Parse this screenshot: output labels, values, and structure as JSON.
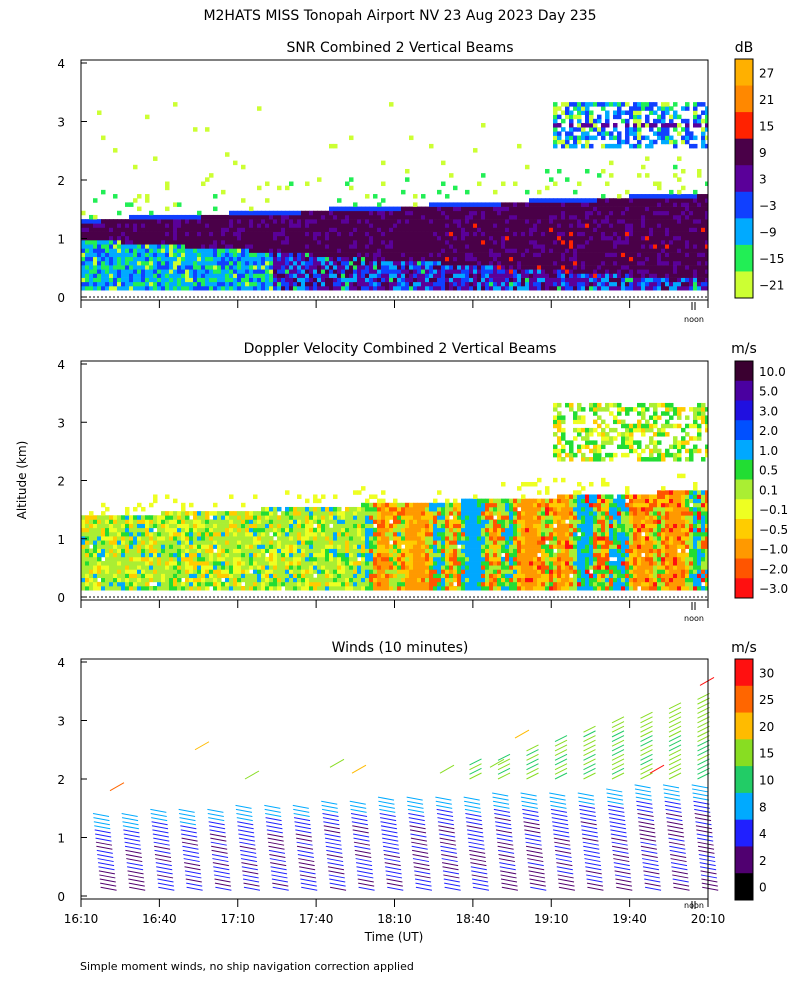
{
  "figure": {
    "title": "M2HATS MISS Tonopah Airport NV  23 Aug 2023 Day 235",
    "ylabel": "Altitude (km)",
    "xlabel": "Time (UT)",
    "footnote": "Simple moment winds, no ship navigation correction applied",
    "noon_label": "noon"
  },
  "chart_data": [
    {
      "type": "heatmap",
      "title": "SNR Combined 2 Vertical Beams",
      "unit": "dB",
      "ylim": [
        0,
        4
      ],
      "yticks": [
        "0",
        "1",
        "2",
        "3",
        "4"
      ],
      "colorbar_labels": [
        "27",
        "21",
        "15",
        "9",
        "3",
        "−3",
        "−9",
        "−15",
        "−21"
      ],
      "colors": [
        "#ffb000",
        "#ff8800",
        "#ff2200",
        "#4a0048",
        "#5a0099",
        "#1040ff",
        "#00aaff",
        "#22ee55",
        "#ccff33"
      ]
    },
    {
      "type": "heatmap",
      "title": "Doppler Velocity Combined 2 Vertical Beams",
      "unit": "m/s",
      "ylim": [
        0,
        4
      ],
      "yticks": [
        "0",
        "1",
        "2",
        "3",
        "4"
      ],
      "colorbar_labels": [
        "10.0",
        "5.0",
        "3.0",
        "2.0",
        "1.0",
        "0.5",
        "0.1",
        "−0.1",
        "−0.5",
        "−1.0",
        "−2.0",
        "−3.0"
      ],
      "colors": [
        "#3a0030",
        "#4a00a0",
        "#2010e0",
        "#0050ff",
        "#00a8ff",
        "#22dd33",
        "#aaee33",
        "#eeff22",
        "#ffcc00",
        "#ff9900",
        "#ff5500",
        "#ff1010"
      ]
    },
    {
      "type": "scatter",
      "title": "Winds (10 minutes)",
      "unit": "m/s",
      "ylim": [
        0,
        4
      ],
      "yticks": [
        "0",
        "1",
        "2",
        "3",
        "4"
      ],
      "xticks": [
        "16:10",
        "16:40",
        "17:10",
        "17:40",
        "18:10",
        "18:40",
        "19:10",
        "19:40",
        "20:10"
      ],
      "colorbar_labels": [
        "30",
        "25",
        "20",
        "15",
        "10",
        "8",
        "4",
        "2",
        "0"
      ],
      "colors": [
        "#ff1010",
        "#ff6600",
        "#ffbb00",
        "#88dd22",
        "#22cc66",
        "#00aaff",
        "#2020ff",
        "#500070",
        "#000000"
      ]
    }
  ]
}
